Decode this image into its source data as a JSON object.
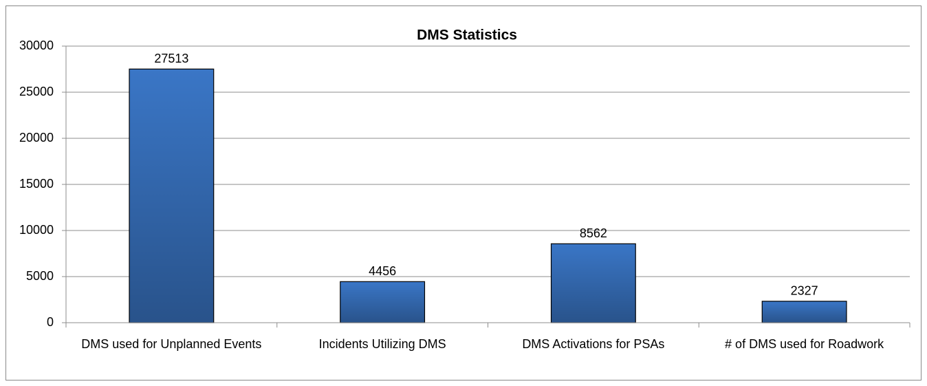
{
  "chart_data": {
    "type": "bar",
    "title": "DMS Statistics",
    "categories": [
      "DMS used for Unplanned Events",
      "Incidents Utilizing DMS",
      "DMS Activations for PSAs",
      "# of DMS used for Roadwork"
    ],
    "values": [
      27513,
      4456,
      8562,
      2327
    ],
    "color": "#3a76c6",
    "ylim": [
      0,
      30000
    ],
    "yticks": [
      0,
      5000,
      10000,
      15000,
      20000,
      25000,
      30000
    ],
    "grid": true
  }
}
